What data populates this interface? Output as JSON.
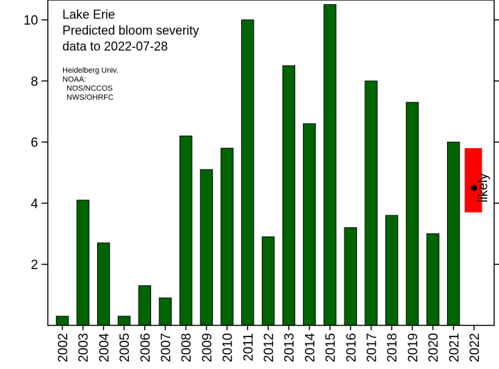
{
  "chart_data": {
    "type": "bar",
    "title_lines": [
      "Lake Erie",
      "Predicted bloom severity",
      "data to 2022-07-28"
    ],
    "credits": [
      "Heidelberg Univ.",
      "NOAA:",
      "NOS/NCCOS",
      "NWS/OHRFC"
    ],
    "categories": [
      "2002",
      "2003",
      "2004",
      "2005",
      "2006",
      "2007",
      "2008",
      "2009",
      "2010",
      "2011",
      "2012",
      "2013",
      "2014",
      "2015",
      "2016",
      "2017",
      "2018",
      "2019",
      "2020",
      "2021",
      "2022"
    ],
    "values": [
      0.3,
      4.1,
      2.7,
      0.3,
      1.3,
      0.9,
      6.2,
      5.1,
      5.8,
      10.0,
      2.9,
      8.5,
      6.6,
      10.5,
      3.2,
      8.0,
      3.6,
      7.3,
      3.0,
      6.0,
      null
    ],
    "yticks": [
      2,
      4,
      6,
      8,
      10
    ],
    "ylim": [
      0,
      10.65
    ],
    "bar_color": "#006400",
    "prediction": {
      "category": "2022",
      "low": 3.7,
      "high": 5.8,
      "point": 4.5,
      "label": "likely",
      "color": "#ff0000"
    },
    "xlabel": "",
    "ylabel": "",
    "grid": false
  }
}
